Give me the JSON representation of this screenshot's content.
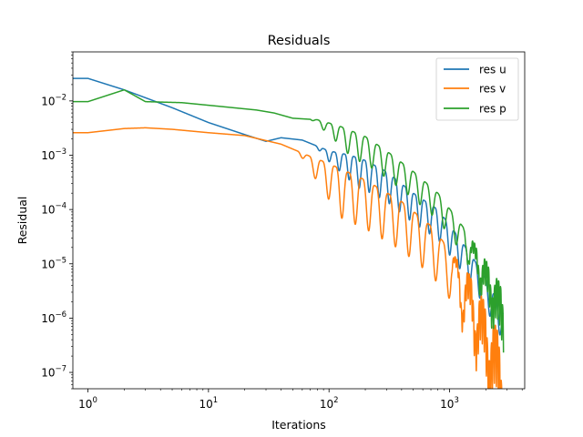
{
  "chart_data": {
    "type": "line",
    "title": "Residuals",
    "xlabel": "Iterations",
    "ylabel": "Residual",
    "xscale": "log",
    "yscale": "log",
    "xlim": [
      0.75,
      4200
    ],
    "ylim": [
      5e-08,
      0.08
    ],
    "grid": false,
    "legend_position": "top-right",
    "x_ticks": [
      {
        "value": 1,
        "label": "10",
        "exp": "0"
      },
      {
        "value": 10,
        "label": "10",
        "exp": "1"
      },
      {
        "value": 100,
        "label": "10",
        "exp": "2"
      },
      {
        "value": 1000,
        "label": "10",
        "exp": "3"
      }
    ],
    "y_ticks": [
      {
        "value": 1e-07,
        "label": "10",
        "exp": "−7"
      },
      {
        "value": 1e-06,
        "label": "10",
        "exp": "−6"
      },
      {
        "value": 1e-05,
        "label": "10",
        "exp": "−5"
      },
      {
        "value": 0.0001,
        "label": "10",
        "exp": "−4"
      },
      {
        "value": 0.001,
        "label": "10",
        "exp": "−3"
      },
      {
        "value": 0.01,
        "label": "10",
        "exp": "−2"
      }
    ],
    "x_range": [
      0.7,
      2800
    ],
    "series": [
      {
        "name": "res u",
        "color": "#1f77b4",
        "keypoints": [
          [
            0.7,
            0.026
          ],
          [
            1,
            0.026
          ],
          [
            2,
            0.016
          ],
          [
            5,
            0.0075
          ],
          [
            10,
            0.004
          ],
          [
            20,
            0.0024
          ],
          [
            30,
            0.0018
          ],
          [
            40,
            0.0021
          ],
          [
            60,
            0.0019
          ],
          [
            100,
            0.0012
          ],
          [
            150,
            0.001
          ],
          [
            200,
            0.0008
          ],
          [
            300,
            0.0005
          ],
          [
            500,
            0.0002
          ],
          [
            800,
            0.0001
          ],
          [
            1200,
            3e-05
          ],
          [
            1800,
            8e-06
          ],
          [
            2400,
            2.5e-06
          ],
          [
            2800,
            1.3e-06
          ]
        ],
        "osc": [
          {
            "from": 75,
            "per_decade": 12,
            "depth": 0.55
          }
        ]
      },
      {
        "name": "res v",
        "color": "#ff7f0e",
        "keypoints": [
          [
            0.7,
            0.0026
          ],
          [
            1,
            0.0026
          ],
          [
            2,
            0.0031
          ],
          [
            3,
            0.0032
          ],
          [
            5,
            0.003
          ],
          [
            10,
            0.0026
          ],
          [
            20,
            0.0023
          ],
          [
            40,
            0.0016
          ],
          [
            70,
            0.00095
          ],
          [
            100,
            0.0007
          ],
          [
            200,
            0.00035
          ],
          [
            400,
            0.00014
          ],
          [
            700,
            5e-05
          ],
          [
            1000,
            1.8e-05
          ],
          [
            1500,
            6e-06
          ],
          [
            2000,
            1.8e-06
          ],
          [
            2500,
            6e-07
          ],
          [
            2800,
            3e-07
          ]
        ],
        "osc": [
          {
            "from": 55,
            "per_decade": 9,
            "depth": 0.9
          },
          {
            "from": 1000,
            "per_decade": 60,
            "depth": 1.1
          }
        ]
      },
      {
        "name": "res p",
        "color": "#2ca02c",
        "keypoints": [
          [
            0.7,
            0.0097
          ],
          [
            1,
            0.0097
          ],
          [
            2,
            0.016
          ],
          [
            3,
            0.0097
          ],
          [
            6,
            0.0093
          ],
          [
            12,
            0.008
          ],
          [
            25,
            0.0068
          ],
          [
            35,
            0.006
          ],
          [
            50,
            0.0048
          ],
          [
            80,
            0.0045
          ],
          [
            120,
            0.0035
          ],
          [
            200,
            0.0022
          ],
          [
            300,
            0.0012
          ],
          [
            500,
            0.0005
          ],
          [
            800,
            0.0002
          ],
          [
            1200,
            6e-05
          ],
          [
            1800,
            1.7e-05
          ],
          [
            2400,
            6e-06
          ],
          [
            2800,
            3.5e-06
          ]
        ],
        "osc": [
          {
            "from": 70,
            "per_decade": 10,
            "depth": 0.5
          },
          {
            "from": 1300,
            "per_decade": 60,
            "depth": 0.9
          }
        ]
      }
    ]
  }
}
